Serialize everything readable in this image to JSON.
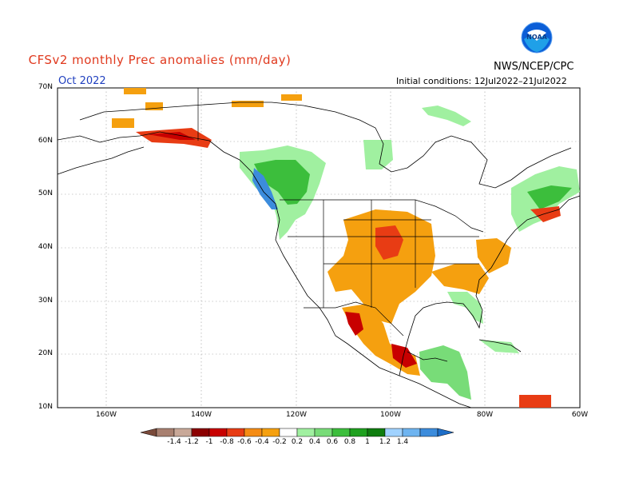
{
  "title": "CFSv2 monthly Prec anomalies (mm/day)",
  "agency": "NWS/NCEP/CPC",
  "month": "Oct 2022",
  "initial_conditions": "Initial conditions: 12Jul2022–21Jul2022",
  "logo_text": "NOAA",
  "lat_labels": [
    "70N",
    "60N",
    "50N",
    "40N",
    "30N",
    "20N",
    "10N"
  ],
  "lon_labels": [
    "160W",
    "140W",
    "120W",
    "100W",
    "80W",
    "60W"
  ],
  "colorbar": {
    "labels": [
      "-1.4",
      "-1.2",
      "-1",
      "-0.8",
      "-0.6",
      "-0.4",
      "-0.2",
      "0.2",
      "0.4",
      "0.6",
      "0.8",
      "1",
      "1.2",
      "1.4"
    ],
    "colors": [
      "#7a4a3a",
      "#a88070",
      "#c8a898",
      "#8b0000",
      "#c80000",
      "#e83c14",
      "#f58c14",
      "#f5a00f",
      "#ffffff",
      "#a0f0a0",
      "#78dc78",
      "#3cbe3c",
      "#1ea01e",
      "#0f7d0f",
      "#a0d2ff",
      "#6eb4f0",
      "#3c8cdc",
      "#1e6ec8"
    ]
  },
  "colors": {
    "title": "#e0391e",
    "month": "#1f3fbf",
    "dry_orange": "#f5a00f",
    "dry_red": "#e83c14",
    "dry_dark": "#c80000",
    "wet_light": "#a0f0a0",
    "wet_mid": "#3cbe3c",
    "wet_blue": "#3c8cdc"
  }
}
